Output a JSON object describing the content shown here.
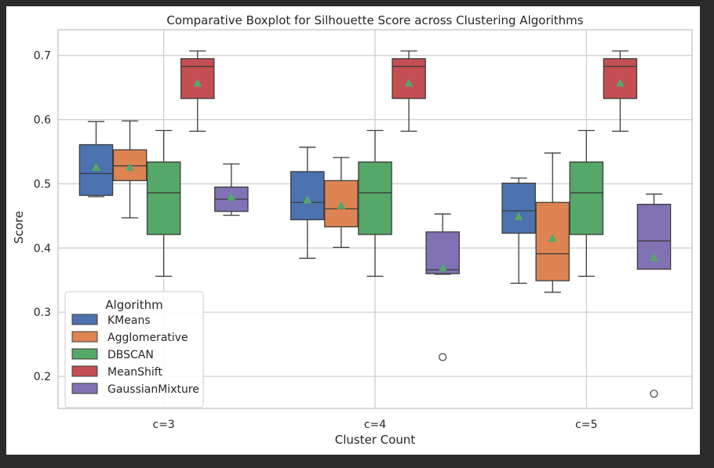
{
  "chart_data": {
    "type": "boxplot",
    "title": "Comparative Boxplot for Silhouette Score across Clustering Algorithms",
    "xlabel": "Cluster Count",
    "ylabel": "Score",
    "categories": [
      "c=3",
      "c=4",
      "c=5"
    ],
    "ylim": [
      0.15,
      0.74
    ],
    "yticks": [
      0.2,
      0.3,
      0.4,
      0.5,
      0.6,
      0.7
    ],
    "grid": true,
    "legend": {
      "title": "Algorithm",
      "position": "lower-left"
    },
    "series": [
      {
        "name": "KMeans",
        "color": "#4c72b0",
        "boxes": [
          {
            "whislo": 0.48,
            "q1": 0.482,
            "med": 0.516,
            "q3": 0.561,
            "whishi": 0.597,
            "mean": 0.526,
            "fliers": []
          },
          {
            "whislo": 0.384,
            "q1": 0.444,
            "med": 0.471,
            "q3": 0.519,
            "whishi": 0.557,
            "mean": 0.475,
            "fliers": []
          },
          {
            "whislo": 0.345,
            "q1": 0.423,
            "med": 0.458,
            "q3": 0.501,
            "whishi": 0.509,
            "mean": 0.449,
            "fliers": []
          }
        ]
      },
      {
        "name": "Agglomerative",
        "color": "#dd8452",
        "boxes": [
          {
            "whislo": 0.447,
            "q1": 0.505,
            "med": 0.528,
            "q3": 0.553,
            "whishi": 0.598,
            "mean": 0.526,
            "fliers": []
          },
          {
            "whislo": 0.401,
            "q1": 0.433,
            "med": 0.461,
            "q3": 0.505,
            "whishi": 0.541,
            "mean": 0.466,
            "fliers": []
          },
          {
            "whislo": 0.331,
            "q1": 0.349,
            "med": 0.391,
            "q3": 0.471,
            "whishi": 0.548,
            "mean": 0.415,
            "fliers": []
          }
        ]
      },
      {
        "name": "DBSCAN",
        "color": "#55a868",
        "boxes": [
          {
            "whislo": 0.356,
            "q1": 0.421,
            "med": 0.486,
            "q3": 0.534,
            "whishi": 0.583,
            "mean": 0.476,
            "fliers": []
          },
          {
            "whislo": 0.356,
            "q1": 0.421,
            "med": 0.486,
            "q3": 0.534,
            "whishi": 0.583,
            "mean": 0.476,
            "fliers": []
          },
          {
            "whislo": 0.356,
            "q1": 0.421,
            "med": 0.486,
            "q3": 0.534,
            "whishi": 0.583,
            "mean": 0.476,
            "fliers": []
          }
        ]
      },
      {
        "name": "MeanShift",
        "color": "#c44e52",
        "boxes": [
          {
            "whislo": 0.582,
            "q1": 0.633,
            "med": 0.683,
            "q3": 0.695,
            "whishi": 0.707,
            "mean": 0.657,
            "fliers": []
          },
          {
            "whislo": 0.582,
            "q1": 0.633,
            "med": 0.683,
            "q3": 0.695,
            "whishi": 0.707,
            "mean": 0.657,
            "fliers": []
          },
          {
            "whislo": 0.582,
            "q1": 0.633,
            "med": 0.683,
            "q3": 0.695,
            "whishi": 0.707,
            "mean": 0.657,
            "fliers": []
          }
        ]
      },
      {
        "name": "GaussianMixture",
        "color": "#8172b3",
        "boxes": [
          {
            "whislo": 0.451,
            "q1": 0.457,
            "med": 0.476,
            "q3": 0.495,
            "whishi": 0.531,
            "mean": 0.479,
            "fliers": []
          },
          {
            "whislo": 0.359,
            "q1": 0.36,
            "med": 0.366,
            "q3": 0.425,
            "whishi": 0.453,
            "mean": 0.369,
            "fliers": [
              0.23
            ]
          },
          {
            "whislo": 0.367,
            "q1": 0.367,
            "med": 0.411,
            "q3": 0.468,
            "whishi": 0.484,
            "mean": 0.385,
            "fliers": [
              0.173
            ]
          }
        ]
      }
    ]
  }
}
